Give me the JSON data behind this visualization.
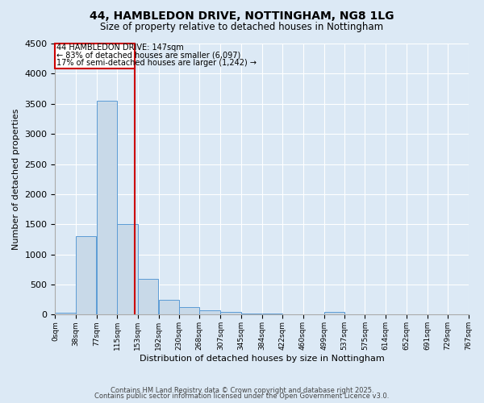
{
  "title_line1": "44, HAMBLEDON DRIVE, NOTTINGHAM, NG8 1LG",
  "title_line2": "Size of property relative to detached houses in Nottingham",
  "xlabel": "Distribution of detached houses by size in Nottingham",
  "ylabel": "Number of detached properties",
  "bin_labels": [
    "0sqm",
    "38sqm",
    "77sqm",
    "115sqm",
    "153sqm",
    "192sqm",
    "230sqm",
    "268sqm",
    "307sqm",
    "345sqm",
    "384sqm",
    "422sqm",
    "460sqm",
    "499sqm",
    "537sqm",
    "575sqm",
    "614sqm",
    "652sqm",
    "691sqm",
    "729sqm",
    "767sqm"
  ],
  "bin_edges": [
    0,
    38,
    77,
    115,
    153,
    192,
    230,
    268,
    307,
    345,
    384,
    422,
    460,
    499,
    537,
    575,
    614,
    652,
    691,
    729,
    767
  ],
  "bar_heights": [
    30,
    1300,
    3550,
    1500,
    600,
    250,
    120,
    75,
    40,
    25,
    15,
    5,
    0,
    50,
    5,
    0,
    0,
    0,
    0,
    0
  ],
  "property_size": 147,
  "property_label": "44 HAMBLEDON DRIVE: 147sqm",
  "annotation_line1": "← 83% of detached houses are smaller (6,097)",
  "annotation_line2": "17% of semi-detached houses are larger (1,242) →",
  "bar_color": "#c8d9e8",
  "bar_edge_color": "#5b9bd5",
  "vline_color": "#cc0000",
  "box_edge_color": "#cc0000",
  "bg_color": "#dce9f5",
  "ylim": [
    0,
    4500
  ],
  "footnote1": "Contains HM Land Registry data © Crown copyright and database right 2025.",
  "footnote2": "Contains public sector information licensed under the Open Government Licence v3.0."
}
